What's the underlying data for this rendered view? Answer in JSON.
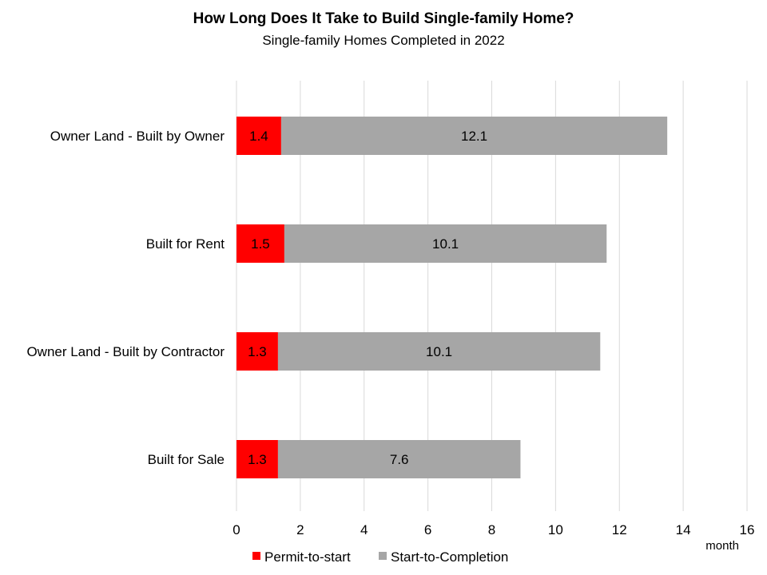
{
  "chart_data": {
    "type": "bar",
    "orientation": "horizontal",
    "stacked": true,
    "title": "How Long Does It Take to Build  Single-family  Home?",
    "subtitle": "Single-family  Homes  Completed  in 2022",
    "categories": [
      "Owner Land - Built by Owner",
      "Built for Rent",
      "Owner Land - Built by Contractor",
      "Built for Sale"
    ],
    "series": [
      {
        "name": "Permit-to-start",
        "color": "#ff0000",
        "values": [
          1.4,
          1.5,
          1.3,
          1.3
        ]
      },
      {
        "name": "Start-to-Completion",
        "color": "#a6a6a6",
        "values": [
          12.1,
          10.1,
          10.1,
          7.6
        ]
      }
    ],
    "xlabel": "month",
    "ylabel": "",
    "xlim": [
      0,
      16
    ],
    "x_ticks": [
      "0",
      "2",
      "4",
      "6",
      "8",
      "10",
      "12",
      "14",
      "16"
    ],
    "grid": "vertical",
    "legend": "bottom",
    "data_labels": true
  }
}
